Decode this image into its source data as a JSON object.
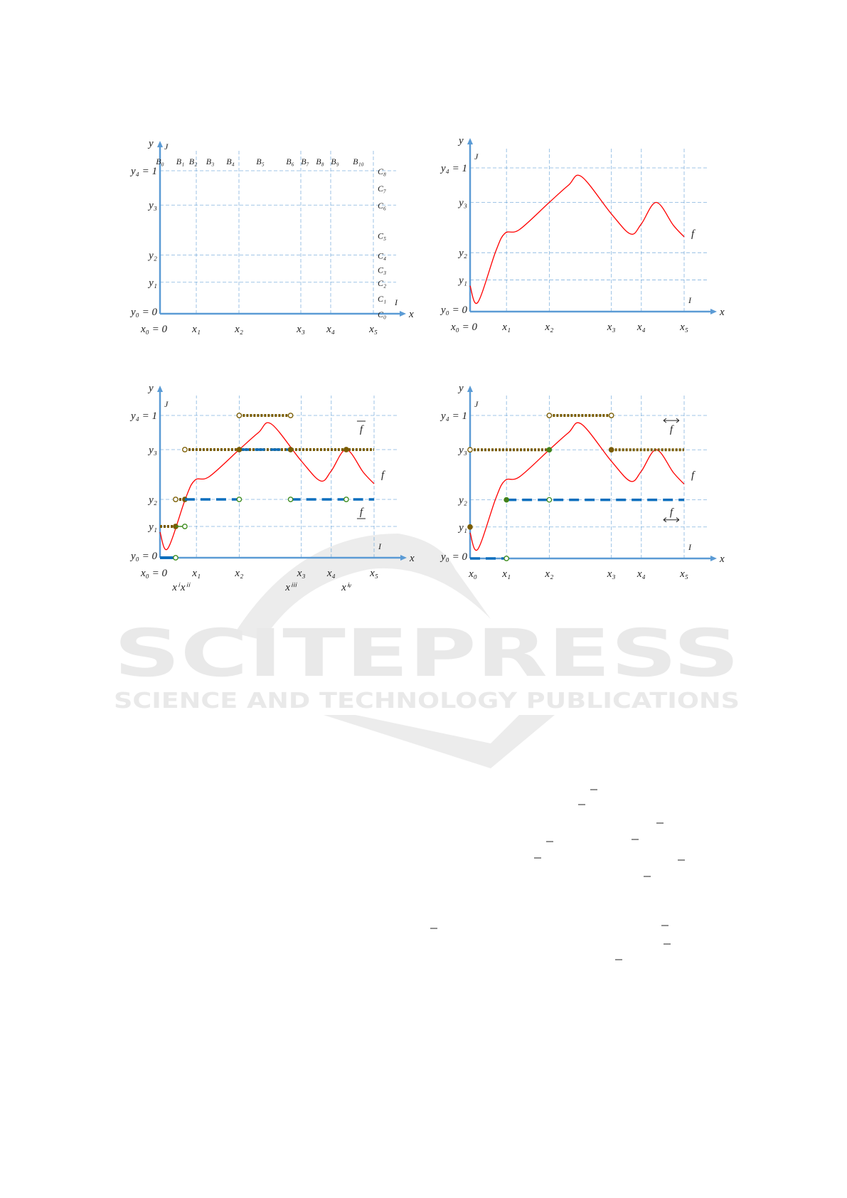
{
  "watermark": {
    "brand": "SCITEPRESS",
    "tagline": "SCIENCE AND TECHNOLOGY PUBLICATIONS"
  },
  "colors": {
    "axis": "#5b9bd5",
    "grid": "#5b9bd5",
    "curve": "#ff0000",
    "step_dotted": "#7a5c00",
    "step_dashed": "#0a6ebd",
    "open_green": "#3a8a1a"
  },
  "chart_data": [
    {
      "type": "diagram",
      "panel": "partition-grid",
      "axis_labels": {
        "x": "x",
        "y": "y",
        "I": "I",
        "J": "J"
      },
      "x_ticks": [
        {
          "v": 0,
          "label": "x₀ = 0"
        },
        {
          "v": 0.17,
          "label": "x₁"
        },
        {
          "v": 0.37,
          "label": "x₂"
        },
        {
          "v": 0.66,
          "label": "x₃"
        },
        {
          "v": 0.8,
          "label": "x₄"
        },
        {
          "v": 1.0,
          "label": "x₅"
        }
      ],
      "y_ticks": [
        {
          "v": 0,
          "label": "y₀ = 0"
        },
        {
          "v": 0.22,
          "label": "y₁"
        },
        {
          "v": 0.41,
          "label": "y₂"
        },
        {
          "v": 0.76,
          "label": "y₃"
        },
        {
          "v": 1.0,
          "label": "y₄ = 1"
        }
      ],
      "B_labels": [
        "B₀",
        "B₁",
        "B₂",
        "B₃",
        "B₄",
        "B₅",
        "B₆",
        "B₇",
        "B₈",
        "B₉",
        "B₁₀"
      ],
      "C_labels": [
        "C₀",
        "C₁",
        "C₂",
        "C₃",
        "C₄",
        "C₅",
        "C₆",
        "C₇",
        "C₈"
      ]
    },
    {
      "type": "line",
      "panel": "function",
      "axis_labels": {
        "x": "x",
        "y": "y",
        "I": "I",
        "J": "J"
      },
      "x_ticks": [
        {
          "v": 0,
          "label": "x₀ = 0"
        },
        {
          "v": 0.17,
          "label": "x₁"
        },
        {
          "v": 0.37,
          "label": "x₂"
        },
        {
          "v": 0.66,
          "label": "x₃"
        },
        {
          "v": 0.8,
          "label": "x₄"
        },
        {
          "v": 1.0,
          "label": "x₅"
        }
      ],
      "y_ticks": [
        {
          "v": 0,
          "label": "y₀ = 0"
        },
        {
          "v": 0.22,
          "label": "y₁"
        },
        {
          "v": 0.41,
          "label": "y₂"
        },
        {
          "v": 0.76,
          "label": "y₃"
        },
        {
          "v": 1.0,
          "label": "y₄ = 1"
        }
      ],
      "series_labels": [
        {
          "text": "f",
          "x": 1.04,
          "y": 0.52
        }
      ]
    },
    {
      "type": "line",
      "panel": "upper-lower-bounds",
      "axis_labels": {
        "x": "x",
        "y": "y",
        "I": "I",
        "J": "J"
      },
      "x_ticks": [
        {
          "v": 0,
          "label": "x₀ = 0"
        },
        {
          "v": 0.073,
          "label": "xⁱ"
        },
        {
          "v": 0.116,
          "label": "xⁱⁱ"
        },
        {
          "v": 0.17,
          "label": "x₁"
        },
        {
          "v": 0.37,
          "label": "x₂"
        },
        {
          "v": 0.61,
          "label": "xⁱⁱⁱ"
        },
        {
          "v": 0.66,
          "label": "x₃"
        },
        {
          "v": 0.8,
          "label": "x₄"
        },
        {
          "v": 0.87,
          "label": "xⁱᵛ"
        },
        {
          "v": 1.0,
          "label": "x₅"
        }
      ],
      "y_ticks": [
        {
          "v": 0,
          "label": "y₀ = 0"
        },
        {
          "v": 0.22,
          "label": "y₁"
        },
        {
          "v": 0.41,
          "label": "y₂"
        },
        {
          "v": 0.76,
          "label": "y₃"
        },
        {
          "v": 1.0,
          "label": "y₄ = 1"
        }
      ],
      "grid_x": [
        0.17,
        0.37,
        0.66,
        0.8,
        1.0
      ],
      "series_labels": [
        {
          "text": "f",
          "x": 0.94,
          "y": 0.88,
          "mark": "overline"
        },
        {
          "text": "f",
          "x": 1.04,
          "y": 0.56
        },
        {
          "text": "f",
          "x": 0.94,
          "y": 0.3,
          "mark": "underline"
        }
      ],
      "segments": [
        {
          "y": 0,
          "x0": 0,
          "x1": 0.073,
          "style": "solid",
          "start": "none",
          "end": "open-green"
        },
        {
          "y": 0.22,
          "x0": 0,
          "x1": 0.073,
          "style": "dotted",
          "start": "none",
          "end": "filled"
        },
        {
          "y": 0.22,
          "x0": 0.073,
          "x1": 0.116,
          "style": "thin-green",
          "start": "none",
          "end": "open-green"
        },
        {
          "y": 0.41,
          "x0": 0.073,
          "x1": 0.116,
          "style": "dotted",
          "start": "open",
          "end": "filled"
        },
        {
          "y": 0.41,
          "x0": 0.116,
          "x1": 0.37,
          "style": "dashed",
          "start": "none",
          "end": "open-green"
        },
        {
          "y": 0.76,
          "x0": 0.116,
          "x1": 1.0,
          "style": "dotted",
          "start": "open",
          "end": "none"
        },
        {
          "y": 0.76,
          "x0": 0.37,
          "x1": 0.61,
          "style": "dashed",
          "start": "filled",
          "end": "filled"
        },
        {
          "y": 0.76,
          "x0": 0.87,
          "x1": 0.87,
          "style": "dotted",
          "start": "filled",
          "end": "none"
        },
        {
          "y": 1.0,
          "x0": 0.37,
          "x1": 0.61,
          "style": "dotted",
          "start": "open",
          "end": "open"
        },
        {
          "y": 0.41,
          "x0": 0.61,
          "x1": 1.0,
          "style": "dashed",
          "start": "open-green",
          "end": "none"
        },
        {
          "y": 0.41,
          "x0": 0.87,
          "x1": 0.87,
          "style": "dashed",
          "start": "open-green",
          "end": "none"
        }
      ]
    },
    {
      "type": "line",
      "panel": "interval-bounds",
      "axis_labels": {
        "x": "x",
        "y": "y",
        "I": "I",
        "J": "J"
      },
      "x_ticks": [
        {
          "v": 0,
          "label": "x₀"
        },
        {
          "v": 0.17,
          "label": "x₁"
        },
        {
          "v": 0.37,
          "label": "x₂"
        },
        {
          "v": 0.66,
          "label": "x₃"
        },
        {
          "v": 0.8,
          "label": "x₄"
        },
        {
          "v": 1.0,
          "label": "x₅"
        }
      ],
      "y_ticks": [
        {
          "v": 0,
          "label": "y₀ = 0"
        },
        {
          "v": 0.22,
          "label": "y₁"
        },
        {
          "v": 0.41,
          "label": "y₂"
        },
        {
          "v": 0.76,
          "label": "y₃"
        },
        {
          "v": 1.0,
          "label": "y₄ = 1"
        }
      ],
      "grid_x": [
        0.17,
        0.37,
        0.66,
        0.8,
        1.0
      ],
      "series_labels": [
        {
          "text": "f",
          "x": 0.94,
          "y": 0.88,
          "mark": "arrow-above"
        },
        {
          "text": "f",
          "x": 1.04,
          "y": 0.56
        },
        {
          "text": "f",
          "x": 0.94,
          "y": 0.3,
          "mark": "arrow-below"
        }
      ],
      "segments": [
        {
          "y": 0,
          "x0": 0,
          "x1": 0.17,
          "style": "dashed",
          "start": "none",
          "end": "open-green"
        },
        {
          "y": 0.22,
          "x0": 0,
          "x1": 0,
          "style": "dotted",
          "start": "filled",
          "end": "none"
        },
        {
          "y": 0.41,
          "x0": 0.17,
          "x1": 1.0,
          "style": "dashed",
          "start": "filled-green",
          "end": "none"
        },
        {
          "y": 0.41,
          "x0": 0.37,
          "x1": 0.37,
          "style": "dashed",
          "start": "open-green",
          "end": "none"
        },
        {
          "y": 0.76,
          "x0": 0,
          "x1": 0.37,
          "style": "dotted",
          "start": "open",
          "end": "filled-green"
        },
        {
          "y": 0.76,
          "x0": 0.66,
          "x1": 1.0,
          "style": "dotted",
          "start": "filled",
          "end": "none"
        },
        {
          "y": 1.0,
          "x0": 0.37,
          "x1": 0.66,
          "style": "dotted",
          "start": "open",
          "end": "open"
        }
      ]
    }
  ],
  "curve_f": [
    [
      0,
      0.18
    ],
    [
      0.036,
      0.064
    ],
    [
      0.12,
      0.42
    ],
    [
      0.163,
      0.545
    ],
    [
      0.23,
      0.57
    ],
    [
      0.37,
      0.76
    ],
    [
      0.46,
      0.88
    ],
    [
      0.52,
      0.94
    ],
    [
      0.66,
      0.68
    ],
    [
      0.75,
      0.54
    ],
    [
      0.8,
      0.61
    ],
    [
      0.87,
      0.76
    ],
    [
      0.95,
      0.6
    ],
    [
      1.0,
      0.52
    ]
  ]
}
